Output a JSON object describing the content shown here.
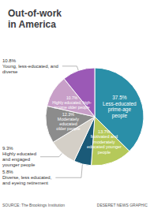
{
  "chart_data": {
    "type": "pie",
    "title": "Out-of-work\nin America",
    "categories": [
      "Less-educated\nprime-age\npeople",
      "Motivated and\nmoderately\neducated younger\npeople",
      "Diverse, less educated,\nand eyeing retirement",
      "Highly educated\nand engaged\nyounger people",
      "Moderately\neducated\nolder people",
      "Highly educated, high-\nincome older people",
      "Young, less-educated, and\ndiverse"
    ],
    "values": [
      37.5,
      13.7,
      5.8,
      9.3,
      12.3,
      10.7,
      10.8
    ],
    "value_labels": [
      "37.5%",
      "13.7%",
      "5.8%",
      "9.3%",
      "12.3%",
      "10.7%",
      "10.8%"
    ],
    "colors": [
      "#2a8fa8",
      "#b5c95a",
      "#1a5a78",
      "#d4cfc7",
      "#8c8c8c",
      "#c89fc8",
      "#9b59b6"
    ],
    "data_labels": true,
    "annotations": [
      "SOURCE: The Brookings Institution",
      "DESERET NEWS GRAPHIC"
    ]
  }
}
